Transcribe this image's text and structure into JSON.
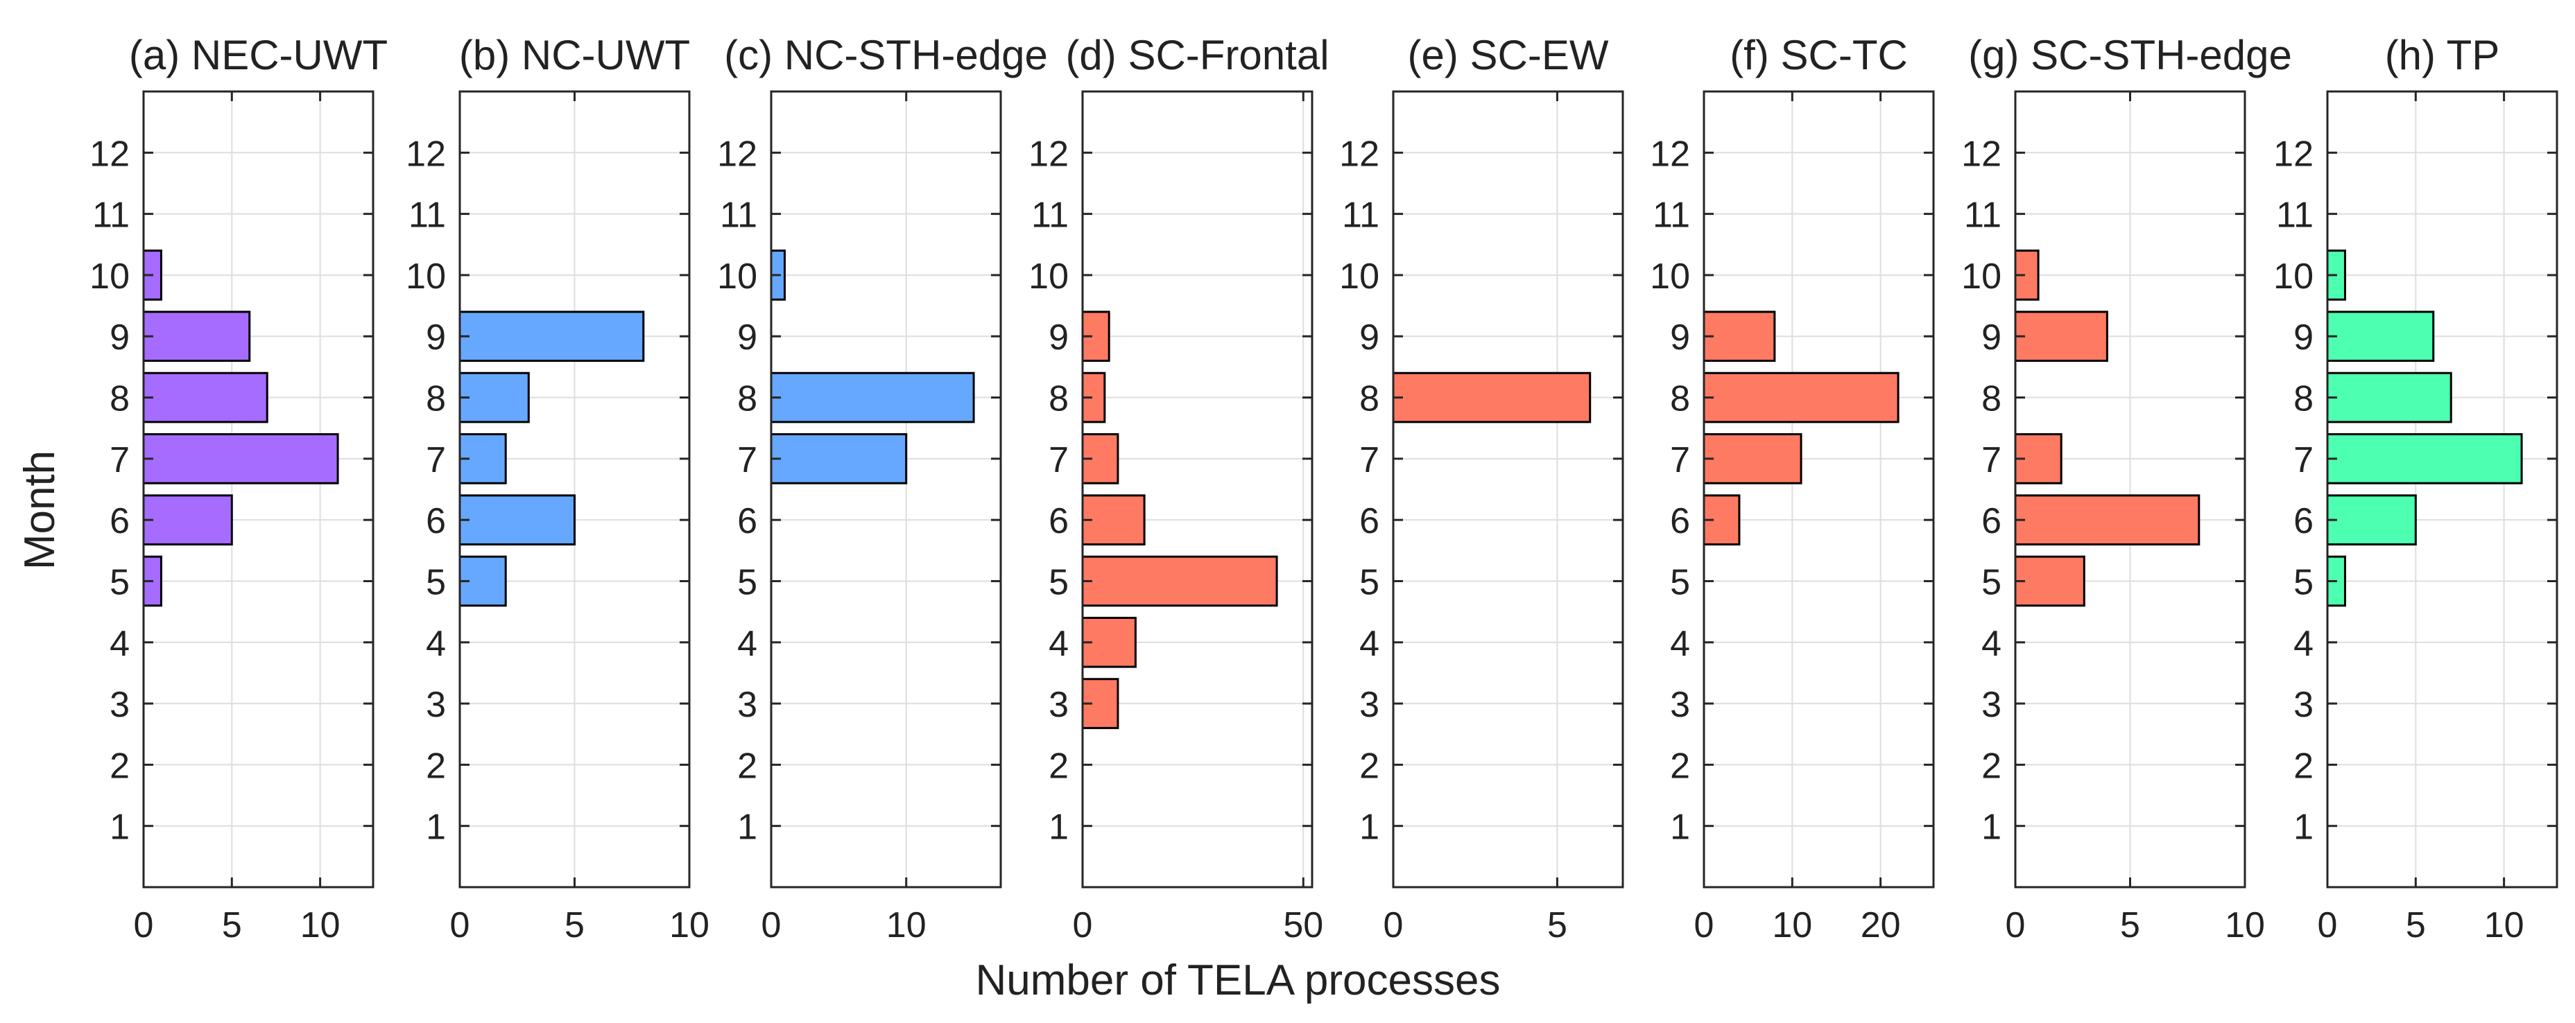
{
  "figure": {
    "xlabel": "Number of TELA processes",
    "ylabel": "Month"
  },
  "chart_data": [
    {
      "type": "bar",
      "orientation": "horizontal",
      "title": "(a) NEC-UWT",
      "categories": [
        1,
        2,
        3,
        4,
        5,
        6,
        7,
        8,
        9,
        10,
        11,
        12
      ],
      "values": [
        0,
        0,
        0,
        0,
        1,
        5,
        11,
        7,
        6,
        1,
        0,
        0
      ],
      "xlim": [
        0,
        13
      ],
      "xticks": [
        0,
        5,
        10
      ],
      "ylim": [
        0,
        13
      ],
      "color": "#a66bff",
      "grid": true
    },
    {
      "type": "bar",
      "orientation": "horizontal",
      "title": "(b) NC-UWT",
      "categories": [
        1,
        2,
        3,
        4,
        5,
        6,
        7,
        8,
        9,
        10,
        11,
        12
      ],
      "values": [
        0,
        0,
        0,
        0,
        2,
        5,
        2,
        3,
        8,
        0,
        0,
        0
      ],
      "xlim": [
        0,
        10
      ],
      "xticks": [
        0,
        5,
        10
      ],
      "ylim": [
        0,
        13
      ],
      "color": "#66a8ff",
      "grid": true
    },
    {
      "type": "bar",
      "orientation": "horizontal",
      "title": "(c) NC-STH-edge",
      "categories": [
        1,
        2,
        3,
        4,
        5,
        6,
        7,
        8,
        9,
        10,
        11,
        12
      ],
      "values": [
        0,
        0,
        0,
        0,
        0,
        0,
        10,
        15,
        0,
        1,
        0,
        0
      ],
      "xlim": [
        0,
        17
      ],
      "xticks": [
        0,
        10
      ],
      "ylim": [
        0,
        13
      ],
      "color": "#66a8ff",
      "grid": true
    },
    {
      "type": "bar",
      "orientation": "horizontal",
      "title": "(d) SC-Frontal",
      "categories": [
        1,
        2,
        3,
        4,
        5,
        6,
        7,
        8,
        9,
        10,
        11,
        12
      ],
      "values": [
        0,
        0,
        8,
        12,
        44,
        14,
        8,
        5,
        6,
        0,
        0,
        0
      ],
      "xlim": [
        0,
        52
      ],
      "xticks": [
        0,
        50
      ],
      "ylim": [
        0,
        13
      ],
      "color": "#ff7a63",
      "grid": true
    },
    {
      "type": "bar",
      "orientation": "horizontal",
      "title": "(e) SC-EW",
      "categories": [
        1,
        2,
        3,
        4,
        5,
        6,
        7,
        8,
        9,
        10,
        11,
        12
      ],
      "values": [
        0,
        0,
        0,
        0,
        0,
        0,
        0,
        6,
        0,
        0,
        0,
        0
      ],
      "xlim": [
        0,
        7
      ],
      "xticks": [
        0,
        5
      ],
      "ylim": [
        0,
        13
      ],
      "color": "#ff7a63",
      "grid": true
    },
    {
      "type": "bar",
      "orientation": "horizontal",
      "title": "(f) SC-TC",
      "categories": [
        1,
        2,
        3,
        4,
        5,
        6,
        7,
        8,
        9,
        10,
        11,
        12
      ],
      "values": [
        0,
        0,
        0,
        0,
        0,
        4,
        11,
        22,
        8,
        0,
        0,
        0
      ],
      "xlim": [
        0,
        26
      ],
      "xticks": [
        0,
        10,
        20
      ],
      "ylim": [
        0,
        13
      ],
      "color": "#ff7a63",
      "grid": true
    },
    {
      "type": "bar",
      "orientation": "horizontal",
      "title": "(g) SC-STH-edge",
      "categories": [
        1,
        2,
        3,
        4,
        5,
        6,
        7,
        8,
        9,
        10,
        11,
        12
      ],
      "values": [
        0,
        0,
        0,
        0,
        3,
        8,
        2,
        0,
        4,
        1,
        0,
        0
      ],
      "xlim": [
        0,
        10
      ],
      "xticks": [
        0,
        5,
        10
      ],
      "ylim": [
        0,
        13
      ],
      "color": "#ff7a63",
      "grid": true
    },
    {
      "type": "bar",
      "orientation": "horizontal",
      "title": "(h) TP",
      "categories": [
        1,
        2,
        3,
        4,
        5,
        6,
        7,
        8,
        9,
        10,
        11,
        12
      ],
      "values": [
        0,
        0,
        0,
        0,
        1,
        5,
        11,
        7,
        6,
        1,
        0,
        0
      ],
      "xlim": [
        0,
        13
      ],
      "xticks": [
        0,
        5,
        10
      ],
      "ylim": [
        0,
        13
      ],
      "color": "#4dffb0",
      "grid": true
    }
  ]
}
